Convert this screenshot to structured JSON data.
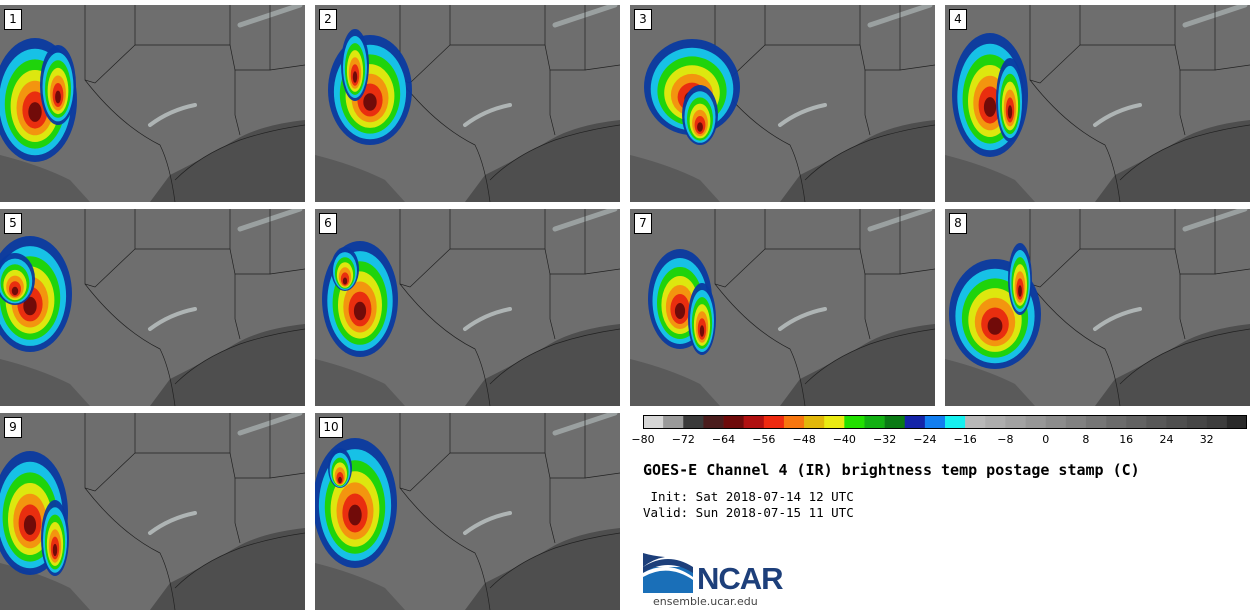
{
  "panels": [
    {
      "label": "1"
    },
    {
      "label": "2"
    },
    {
      "label": "3"
    },
    {
      "label": "4"
    },
    {
      "label": "5"
    },
    {
      "label": "6"
    },
    {
      "label": "7"
    },
    {
      "label": "8"
    },
    {
      "label": "9"
    },
    {
      "label": "10"
    }
  ],
  "colorbar": {
    "min": -80,
    "max": 36,
    "step": 4,
    "tick_labels": [
      "−80",
      "−72",
      "−64",
      "−56",
      "−48",
      "−40",
      "−32",
      "−24",
      "−16",
      "−8",
      "0",
      "8",
      "16",
      "24",
      "32"
    ],
    "tick_values": [
      -80,
      -72,
      -64,
      -56,
      -48,
      -40,
      -32,
      -24,
      -16,
      -8,
      0,
      8,
      16,
      24,
      32
    ],
    "colors": [
      "#d6d6d6",
      "#9a9a9a",
      "#3a3a3a",
      "#4a1c1c",
      "#6e0a0a",
      "#b01010",
      "#ee2a10",
      "#f7760f",
      "#e2b70a",
      "#eaea12",
      "#22e000",
      "#12b012",
      "#0a7a14",
      "#1424a8",
      "#127ef0",
      "#16f0f0",
      "#b8b8b8",
      "#adadad",
      "#a2a2a2",
      "#979797",
      "#8c8c8c",
      "#818181",
      "#767676",
      "#6b6b6b",
      "#626262",
      "#585858",
      "#4f4f4f",
      "#464646",
      "#3d3d3d",
      "#2a2a2a"
    ]
  },
  "title": "GOES-E Channel 4 (IR) brightness temp postage stamp (C)",
  "init_line": " Init: Sat 2018-07-14 12 UTC",
  "valid_line": "Valid: Sun 2018-07-15 11 UTC",
  "logo": {
    "text": "NCAR",
    "url": "ensemble.ucar.edu",
    "brand_color": "#1d3f7a"
  }
}
